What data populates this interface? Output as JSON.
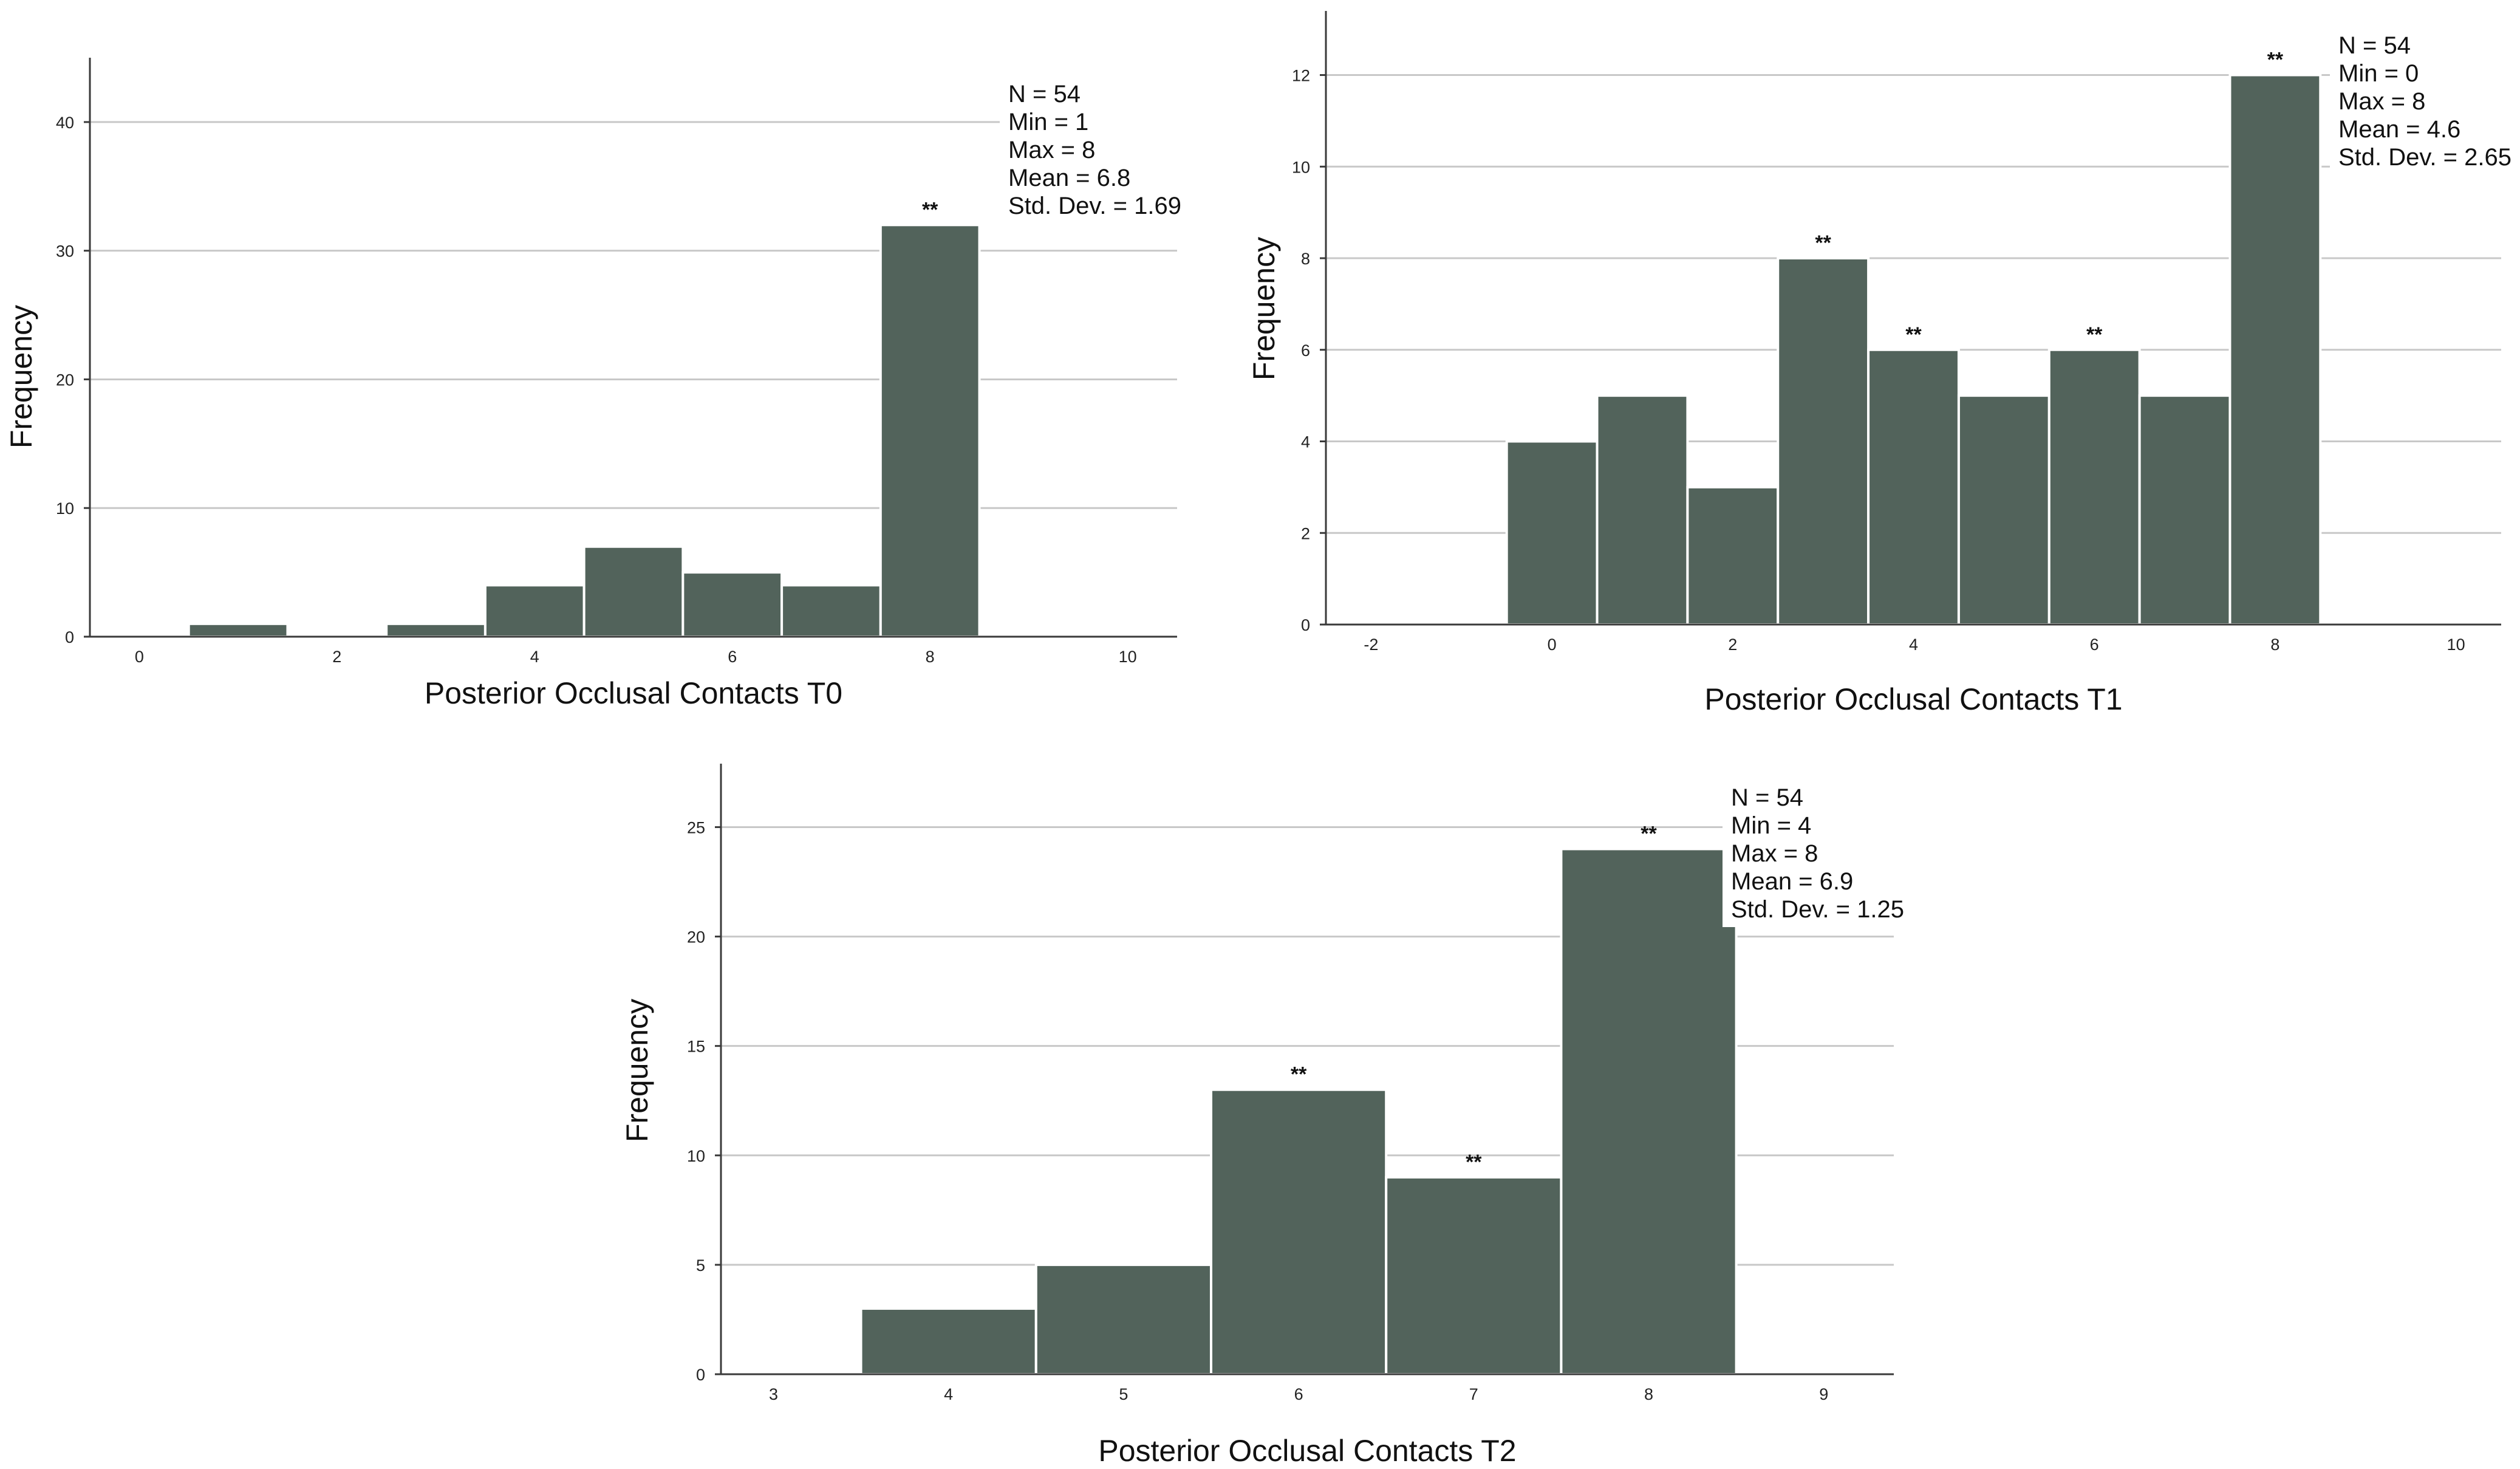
{
  "chart_data": [
    {
      "type": "bar",
      "title": "",
      "xlabel": "Posterior Occlusal Contacts T0",
      "ylabel": "Frequency",
      "bin_width": 1,
      "x": [
        1,
        3,
        4,
        5,
        6,
        7,
        8
      ],
      "values": [
        1,
        1,
        4,
        7,
        5,
        4,
        32
      ],
      "significance": [
        "",
        "",
        "",
        "",
        "",
        "",
        "**"
      ],
      "xlim": [
        -0.5,
        10.5
      ],
      "ylim": [
        0,
        45
      ],
      "xticks": [
        0,
        2,
        4,
        6,
        8,
        10
      ],
      "xtick_labels": [
        "0",
        "2",
        "4",
        "6",
        "8",
        "10"
      ],
      "yticks": [
        0,
        10,
        20,
        30,
        40
      ],
      "ytick_labels": [
        "0",
        "10",
        "20",
        "30",
        "40"
      ],
      "grid": true,
      "legend_position": "top-right",
      "stats": [
        "N = 54",
        "Min = 1",
        "Max = 8",
        "Mean = 6.8",
        "Std. Dev. = 1.69"
      ]
    },
    {
      "type": "bar",
      "title": "",
      "xlabel": "Posterior Occlusal Contacts T1",
      "ylabel": "Frequency",
      "bin_width": 1,
      "x": [
        0,
        1,
        2,
        3,
        4,
        5,
        6,
        7,
        8
      ],
      "values": [
        4,
        5,
        3,
        8,
        6,
        5,
        6,
        5,
        12
      ],
      "significance": [
        "",
        "",
        "",
        "**",
        "**",
        "",
        "**",
        "",
        "**"
      ],
      "xlim": [
        -2.5,
        10.5
      ],
      "ylim": [
        0,
        13.4
      ],
      "xticks": [
        -2,
        0,
        2,
        4,
        6,
        8,
        10
      ],
      "xtick_labels": [
        "-2",
        "0",
        "2",
        "4",
        "6",
        "8",
        "10"
      ],
      "yticks": [
        0,
        2,
        4,
        6,
        8,
        10,
        12
      ],
      "ytick_labels": [
        "0",
        "2",
        "4",
        "6",
        "8",
        "10",
        "12"
      ],
      "grid": true,
      "legend_position": "top-right",
      "stats": [
        "N = 54",
        "Min = 0",
        "Max = 8",
        "Mean = 4.6",
        "Std. Dev. = 2.65"
      ]
    },
    {
      "type": "bar",
      "title": "",
      "xlabel": "Posterior Occlusal Contacts T2",
      "ylabel": "Frequency",
      "bin_width": 1,
      "x": [
        4,
        5,
        6,
        7,
        8
      ],
      "values": [
        3,
        5,
        13,
        9,
        24
      ],
      "significance": [
        "",
        "",
        "**",
        "**",
        "**"
      ],
      "xlim": [
        2.7,
        9.4
      ],
      "ylim": [
        0,
        27.9
      ],
      "xticks": [
        3,
        4,
        5,
        6,
        7,
        8,
        9
      ],
      "xtick_labels": [
        "3",
        "4",
        "5",
        "6",
        "7",
        "8",
        "9"
      ],
      "yticks": [
        0,
        5,
        10,
        15,
        20,
        25
      ],
      "ytick_labels": [
        "0",
        "5",
        "10",
        "15",
        "20",
        "25"
      ],
      "grid": true,
      "legend_position": "top-right",
      "stats": [
        "N = 54",
        "Min = 4",
        "Max = 8",
        "Mean = 6.9",
        "Std. Dev. = 1.25"
      ]
    }
  ]
}
